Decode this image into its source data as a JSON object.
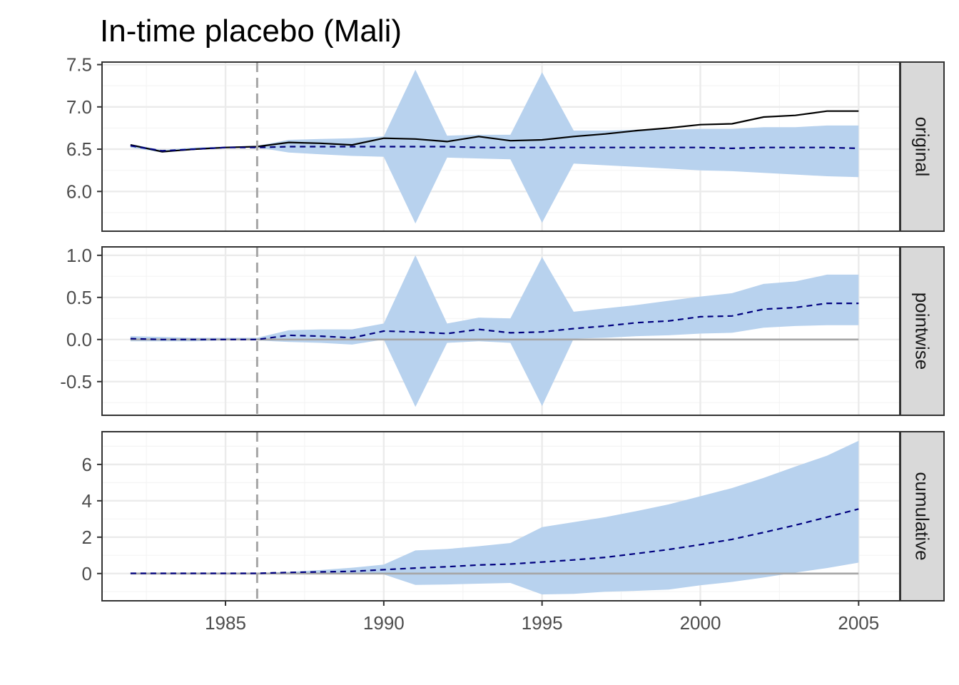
{
  "title": "In-time placebo (Mali)",
  "colors": {
    "band": "#b8d2ee",
    "actual": "#000000",
    "counterfactual": "#00007f",
    "intervention": "#a6a6a6",
    "zero": "#a6a6a6",
    "grid_major": "#ebebeb",
    "grid_minor": "#f4f4f4",
    "panel_border": "#333333",
    "strip_fill": "#d9d9d9"
  },
  "chart_data": {
    "type": "line",
    "title": "In-time placebo (Mali)",
    "x_ticks": [
      1985,
      1990,
      1995,
      2000,
      2005
    ],
    "x_tick_labels": [
      "1985",
      "1990",
      "1995",
      "2000",
      "2005"
    ],
    "xlim": [
      1981.1,
      2006.3
    ],
    "intervention_year": 1986,
    "x": [
      1982,
      1983,
      1984,
      1985,
      1986,
      1987,
      1988,
      1989,
      1990,
      1991,
      1992,
      1993,
      1994,
      1995,
      1996,
      1997,
      1998,
      1999,
      2000,
      2001,
      2002,
      2003,
      2004,
      2005
    ],
    "panels": [
      {
        "strip": "original",
        "ylim": [
          5.53,
          7.53
        ],
        "y_ticks": [
          6.0,
          6.5,
          7.0,
          7.5
        ],
        "y_tick_labels": [
          "6.0",
          "6.5",
          "7.0",
          "7.5"
        ],
        "zero_line": false,
        "actual": [
          6.55,
          6.47,
          6.5,
          6.52,
          6.53,
          6.58,
          6.57,
          6.55,
          6.63,
          6.62,
          6.59,
          6.65,
          6.6,
          6.61,
          6.65,
          6.68,
          6.72,
          6.75,
          6.79,
          6.8,
          6.88,
          6.9,
          6.95,
          6.95
        ],
        "mean": [
          6.54,
          6.48,
          6.5,
          6.52,
          6.52,
          6.53,
          6.53,
          6.53,
          6.53,
          6.53,
          6.53,
          6.52,
          6.52,
          6.52,
          6.52,
          6.52,
          6.52,
          6.52,
          6.52,
          6.51,
          6.52,
          6.52,
          6.52,
          6.51
        ],
        "lower": [
          6.52,
          6.46,
          6.49,
          6.51,
          6.52,
          6.46,
          6.44,
          6.42,
          6.41,
          5.62,
          6.4,
          6.39,
          6.38,
          5.63,
          6.33,
          6.31,
          6.29,
          6.27,
          6.25,
          6.24,
          6.22,
          6.2,
          6.18,
          6.17
        ],
        "upper": [
          6.56,
          6.49,
          6.52,
          6.53,
          6.54,
          6.61,
          6.62,
          6.63,
          6.65,
          7.44,
          6.66,
          6.67,
          6.67,
          7.41,
          6.72,
          6.72,
          6.73,
          6.73,
          6.74,
          6.74,
          6.76,
          6.76,
          6.78,
          6.78
        ]
      },
      {
        "strip": "pointwise",
        "ylim": [
          -0.9,
          1.1
        ],
        "y_ticks": [
          -0.5,
          0.0,
          0.5,
          1.0
        ],
        "y_tick_labels": [
          "-0.5",
          "0.0",
          "0.5",
          "1.0"
        ],
        "zero_line": true,
        "mean": [
          0.01,
          0.0,
          0.0,
          0.0,
          0.0,
          0.05,
          0.04,
          0.02,
          0.1,
          0.09,
          0.07,
          0.12,
          0.08,
          0.09,
          0.13,
          0.16,
          0.2,
          0.22,
          0.27,
          0.28,
          0.36,
          0.38,
          0.43,
          0.43
        ],
        "lower": [
          -0.02,
          -0.02,
          -0.02,
          -0.01,
          -0.01,
          -0.03,
          -0.04,
          -0.06,
          0.0,
          -0.8,
          -0.04,
          -0.02,
          -0.04,
          -0.79,
          0.01,
          0.02,
          0.04,
          0.05,
          0.07,
          0.08,
          0.14,
          0.16,
          0.17,
          0.17
        ],
        "upper": [
          0.04,
          0.03,
          0.02,
          0.02,
          0.02,
          0.11,
          0.12,
          0.12,
          0.19,
          1.0,
          0.19,
          0.26,
          0.25,
          0.98,
          0.33,
          0.37,
          0.41,
          0.46,
          0.51,
          0.55,
          0.66,
          0.69,
          0.77,
          0.77
        ]
      },
      {
        "strip": "cumulative",
        "ylim": [
          -1.5,
          7.8
        ],
        "y_ticks": [
          0,
          2,
          4,
          6
        ],
        "y_tick_labels": [
          "0",
          "2",
          "4",
          "6"
        ],
        "zero_line": true,
        "mean": [
          0.01,
          0.01,
          0.01,
          0.01,
          0.01,
          0.06,
          0.09,
          0.12,
          0.21,
          0.3,
          0.37,
          0.47,
          0.52,
          0.63,
          0.75,
          0.89,
          1.1,
          1.32,
          1.59,
          1.88,
          2.26,
          2.66,
          3.1,
          3.55
        ],
        "lower": [
          -0.01,
          -0.01,
          -0.01,
          -0.01,
          -0.01,
          -0.01,
          -0.02,
          -0.05,
          -0.05,
          -0.63,
          -0.6,
          -0.56,
          -0.52,
          -1.15,
          -1.12,
          -1.0,
          -0.95,
          -0.88,
          -0.65,
          -0.46,
          -0.22,
          0.05,
          0.3,
          0.6
        ],
        "upper": [
          0.03,
          0.03,
          0.03,
          0.03,
          0.03,
          0.09,
          0.19,
          0.32,
          0.49,
          1.27,
          1.35,
          1.5,
          1.68,
          2.55,
          2.83,
          3.1,
          3.44,
          3.8,
          4.25,
          4.7,
          5.26,
          5.88,
          6.48,
          7.3
        ]
      }
    ]
  }
}
